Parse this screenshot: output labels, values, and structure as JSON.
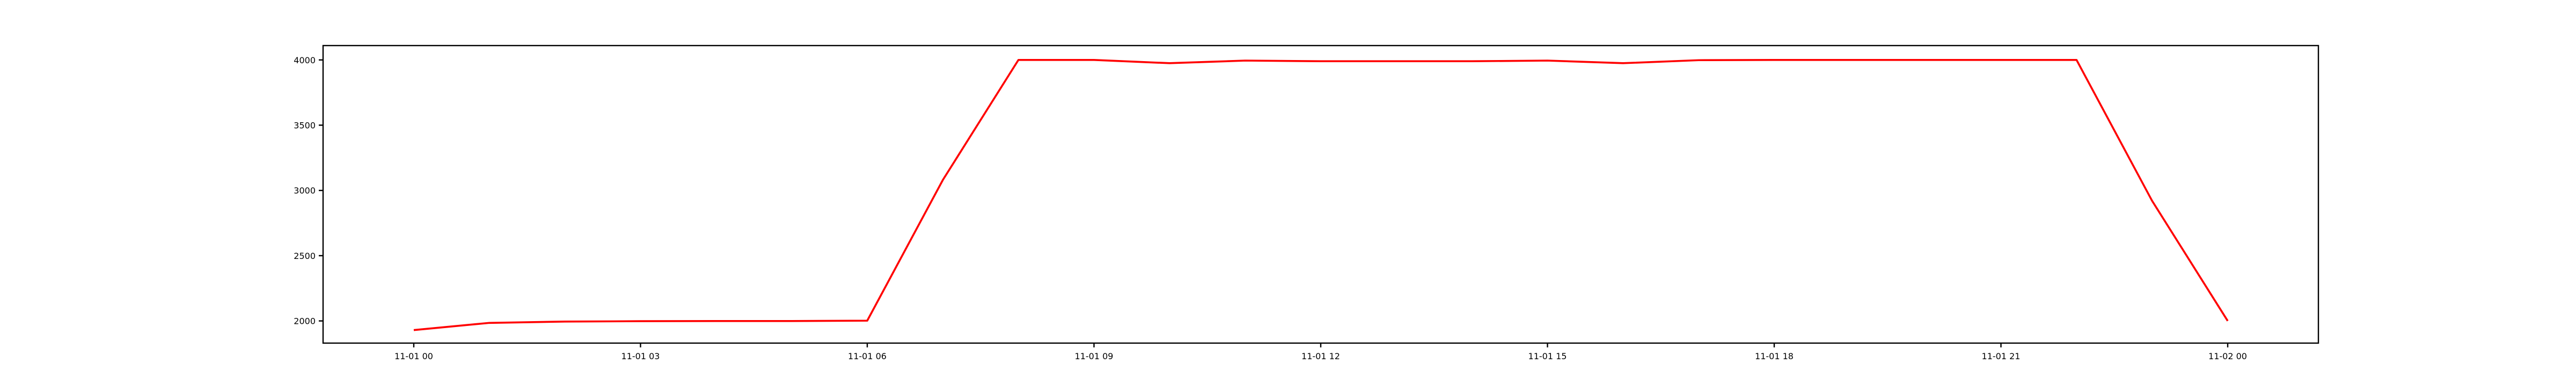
{
  "chart_data": {
    "type": "line",
    "title": "",
    "xlabel": "",
    "ylabel": "",
    "x_hours": [
      0,
      1,
      2,
      3,
      4,
      5,
      6,
      7,
      8,
      9,
      10,
      11,
      12,
      13,
      14,
      15,
      16,
      17,
      18,
      19,
      20,
      21,
      22,
      23,
      24
    ],
    "x": [
      "11-01 00",
      "11-01 01",
      "11-01 02",
      "11-01 03",
      "11-01 04",
      "11-01 05",
      "11-01 06",
      "11-01 07",
      "11-01 08",
      "11-01 09",
      "11-01 10",
      "11-01 11",
      "11-01 12",
      "11-01 13",
      "11-01 14",
      "11-01 15",
      "11-01 16",
      "11-01 17",
      "11-01 18",
      "11-01 19",
      "11-01 20",
      "11-01 21",
      "11-01 22",
      "11-01 23",
      "11-02 00"
    ],
    "series": [
      {
        "color": "#ff0000",
        "values": [
          1930,
          1985,
          1995,
          1998,
          1999,
          1999,
          2002,
          3080,
          4000,
          4000,
          3975,
          3995,
          3990,
          3990,
          3990,
          3995,
          3975,
          3998,
          4000,
          4000,
          4000,
          4000,
          4000,
          2920,
          2000
        ]
      }
    ],
    "xlim_hours": [
      -1.2,
      25.2
    ],
    "ylim": [
      1830,
      4110
    ],
    "xticks": {
      "hours": [
        0,
        3,
        6,
        9,
        12,
        15,
        18,
        21,
        24
      ],
      "labels": [
        "11-01 00",
        "11-01 03",
        "11-01 06",
        "11-01 09",
        "11-01 12",
        "11-01 15",
        "11-01 18",
        "11-01 21",
        "11-02 00"
      ]
    },
    "yticks": [
      2000,
      2500,
      3000,
      3500,
      4000
    ],
    "grid": false,
    "legend": "none"
  }
}
